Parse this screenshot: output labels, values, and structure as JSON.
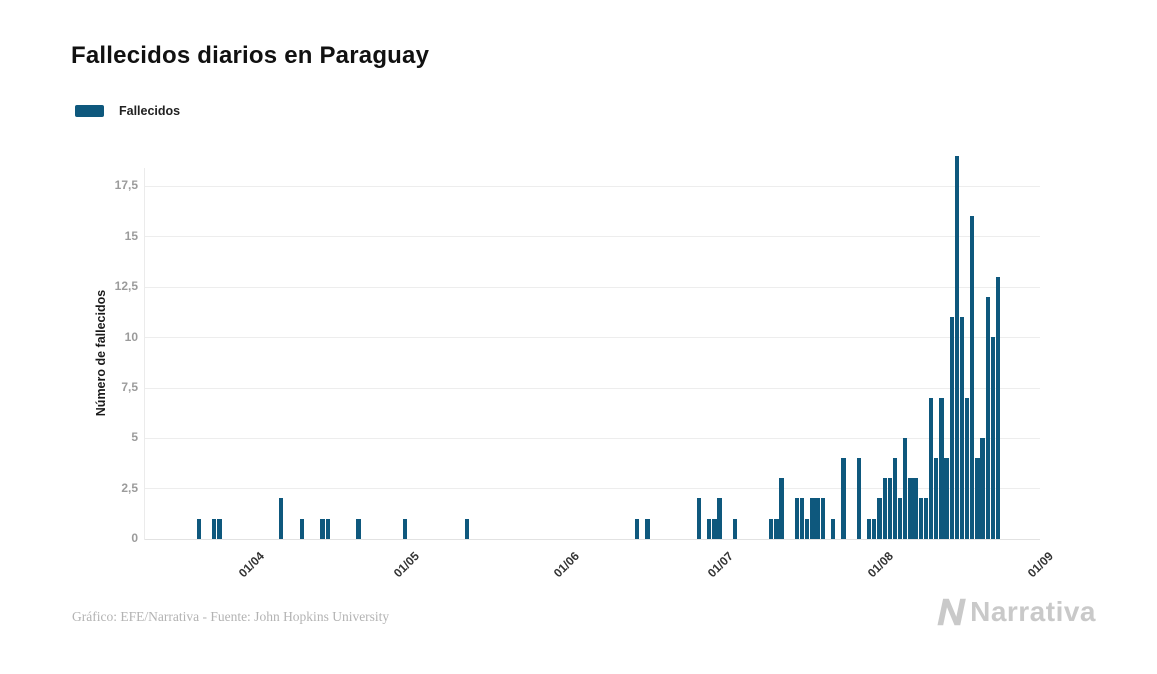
{
  "title": "Fallecidos diarios en Paraguay",
  "legend": {
    "label": "Fallecidos",
    "swatch_color": "#0E587D"
  },
  "y_axis": {
    "title": "Número de fallecidos",
    "tick_labels": [
      "0",
      "2,5",
      "5",
      "7,5",
      "10",
      "12,5",
      "15",
      "17,5"
    ],
    "tick_values": [
      0,
      2.5,
      5,
      7.5,
      10,
      12.5,
      15,
      17.5
    ]
  },
  "x_axis": {
    "ticks": [
      {
        "label": "01/04",
        "day": 19.8
      },
      {
        "label": "01/05",
        "day": 49.8
      },
      {
        "label": "01/06",
        "day": 80.8
      },
      {
        "label": "01/07",
        "day": 110.8
      },
      {
        "label": "01/08",
        "day": 141.8
      },
      {
        "label": "01/09",
        "day": 172.8
      }
    ]
  },
  "footer": {
    "credit": "Gráfico: EFE/Narrativa - Fuente: John Hopkins University",
    "brand": "Narrativa"
  },
  "chart_data": {
    "type": "bar",
    "title": "Fallecidos diarios en Paraguay",
    "series_name": "Fallecidos",
    "bar_color": "#0E587D",
    "xlabel": "",
    "ylabel": "Número de fallecidos",
    "ylim": [
      0,
      19
    ],
    "grid": "horizontal",
    "legend_position": "top-left",
    "x_tick_labels": [
      "01/04",
      "01/05",
      "01/06",
      "01/07",
      "01/08",
      "01/09"
    ],
    "points": [
      {
        "day": 10,
        "date": "22/03",
        "value": 1
      },
      {
        "day": 13,
        "date": "25/03",
        "value": 1
      },
      {
        "day": 14,
        "date": "26/03",
        "value": 1
      },
      {
        "day": 26,
        "date": "07/04",
        "value": 2
      },
      {
        "day": 30,
        "date": "11/04",
        "value": 1
      },
      {
        "day": 34,
        "date": "15/04",
        "value": 1
      },
      {
        "day": 35,
        "date": "16/04",
        "value": 1
      },
      {
        "day": 41,
        "date": "22/04",
        "value": 1
      },
      {
        "day": 50,
        "date": "01/05",
        "value": 1
      },
      {
        "day": 62,
        "date": "13/05",
        "value": 1
      },
      {
        "day": 95,
        "date": "15/06",
        "value": 1
      },
      {
        "day": 97,
        "date": "17/06",
        "value": 1
      },
      {
        "day": 107,
        "date": "27/06",
        "value": 2
      },
      {
        "day": 109,
        "date": "29/06",
        "value": 1
      },
      {
        "day": 110,
        "date": "30/06",
        "value": 1
      },
      {
        "day": 111,
        "date": "01/07",
        "value": 2
      },
      {
        "day": 114,
        "date": "04/07",
        "value": 1
      },
      {
        "day": 121,
        "date": "11/07",
        "value": 1
      },
      {
        "day": 122,
        "date": "12/07",
        "value": 1
      },
      {
        "day": 123,
        "date": "13/07",
        "value": 3
      },
      {
        "day": 126,
        "date": "16/07",
        "value": 2
      },
      {
        "day": 127,
        "date": "17/07",
        "value": 2
      },
      {
        "day": 128,
        "date": "18/07",
        "value": 1
      },
      {
        "day": 129,
        "date": "19/07",
        "value": 2
      },
      {
        "day": 130,
        "date": "20/07",
        "value": 2
      },
      {
        "day": 131,
        "date": "21/07",
        "value": 2
      },
      {
        "day": 133,
        "date": "23/07",
        "value": 1
      },
      {
        "day": 135,
        "date": "25/07",
        "value": 4
      },
      {
        "day": 138,
        "date": "28/07",
        "value": 4
      },
      {
        "day": 140,
        "date": "30/07",
        "value": 1
      },
      {
        "day": 141,
        "date": "31/07",
        "value": 1
      },
      {
        "day": 142,
        "date": "01/08",
        "value": 2
      },
      {
        "day": 143,
        "date": "02/08",
        "value": 3
      },
      {
        "day": 144,
        "date": "03/08",
        "value": 3
      },
      {
        "day": 145,
        "date": "04/08",
        "value": 4
      },
      {
        "day": 146,
        "date": "05/08",
        "value": 2
      },
      {
        "day": 147,
        "date": "06/08",
        "value": 5
      },
      {
        "day": 148,
        "date": "07/08",
        "value": 3
      },
      {
        "day": 149,
        "date": "08/08",
        "value": 3
      },
      {
        "day": 150,
        "date": "09/08",
        "value": 2
      },
      {
        "day": 151,
        "date": "10/08",
        "value": 2
      },
      {
        "day": 152,
        "date": "11/08",
        "value": 7
      },
      {
        "day": 153,
        "date": "12/08",
        "value": 4
      },
      {
        "day": 154,
        "date": "13/08",
        "value": 7
      },
      {
        "day": 155,
        "date": "14/08",
        "value": 4
      },
      {
        "day": 156,
        "date": "15/08",
        "value": 11
      },
      {
        "day": 157,
        "date": "16/08",
        "value": 19
      },
      {
        "day": 158,
        "date": "17/08",
        "value": 11
      },
      {
        "day": 159,
        "date": "18/08",
        "value": 7
      },
      {
        "day": 160,
        "date": "19/08",
        "value": 16
      },
      {
        "day": 161,
        "date": "20/08",
        "value": 4
      },
      {
        "day": 162,
        "date": "21/08",
        "value": 5
      },
      {
        "day": 163,
        "date": "22/08",
        "value": 12
      },
      {
        "day": 164,
        "date": "23/08",
        "value": 10
      },
      {
        "day": 165,
        "date": "24/08",
        "value": 13
      }
    ]
  }
}
